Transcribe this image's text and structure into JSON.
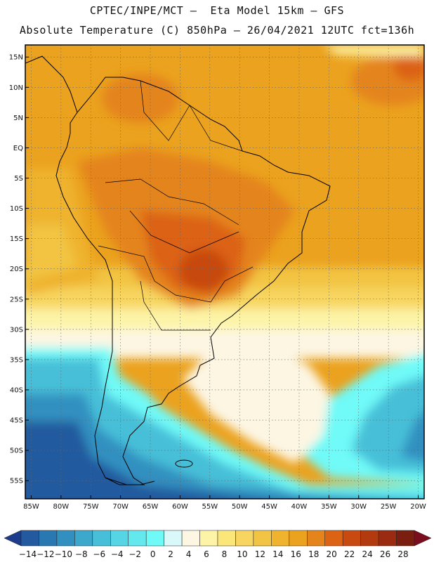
{
  "title": {
    "line1": "CPTEC/INPE/MCT –  Eta Model 15km – GFS",
    "line2": "Absolute Temperature (C) 850hPa – 26/04/2021 12UTC fct=136h"
  },
  "axes": {
    "lat_labels": [
      "15N",
      "10N",
      "5N",
      "EQ",
      "5S",
      "10S",
      "15S",
      "20S",
      "25S",
      "30S",
      "35S",
      "40S",
      "45S",
      "50S",
      "55S"
    ],
    "lat_values": [
      15,
      10,
      5,
      0,
      -5,
      -10,
      -15,
      -20,
      -25,
      -30,
      -35,
      -40,
      -45,
      -50,
      -55
    ],
    "lon_labels": [
      "85W",
      "80W",
      "75W",
      "70W",
      "65W",
      "60W",
      "55W",
      "50W",
      "45W",
      "40W",
      "35W",
      "30W",
      "25W",
      "20W"
    ],
    "lon_values": [
      -85,
      -80,
      -75,
      -70,
      -65,
      -60,
      -55,
      -50,
      -45,
      -40,
      -35,
      -30,
      -25,
      -20
    ],
    "lat_range": [
      -58,
      17
    ],
    "lon_range": [
      -86,
      -19
    ]
  },
  "colorbar": {
    "labels": [
      "-14",
      "-12",
      "-10",
      "-8",
      "-6",
      "-4",
      "-2",
      "0",
      "2",
      "4",
      "6",
      "8",
      "10",
      "12",
      "14",
      "16",
      "18",
      "20",
      "22",
      "24",
      "26",
      "28"
    ],
    "colors": [
      "#1e3c8c",
      "#235a9f",
      "#2a78b2",
      "#3290c0",
      "#3ba8cc",
      "#47bfd8",
      "#56d5e4",
      "#63e8ee",
      "#6ffaf8",
      "#d8f8fa",
      "#fdf6e3",
      "#fdf4a8",
      "#fbe67a",
      "#f7d560",
      "#f2c443",
      "#efb32e",
      "#eba21e",
      "#e4841a",
      "#dc6214",
      "#c84a10",
      "#b33a0f",
      "#9a2a10",
      "#7a1e10",
      "#7a0e1e"
    ]
  }
}
